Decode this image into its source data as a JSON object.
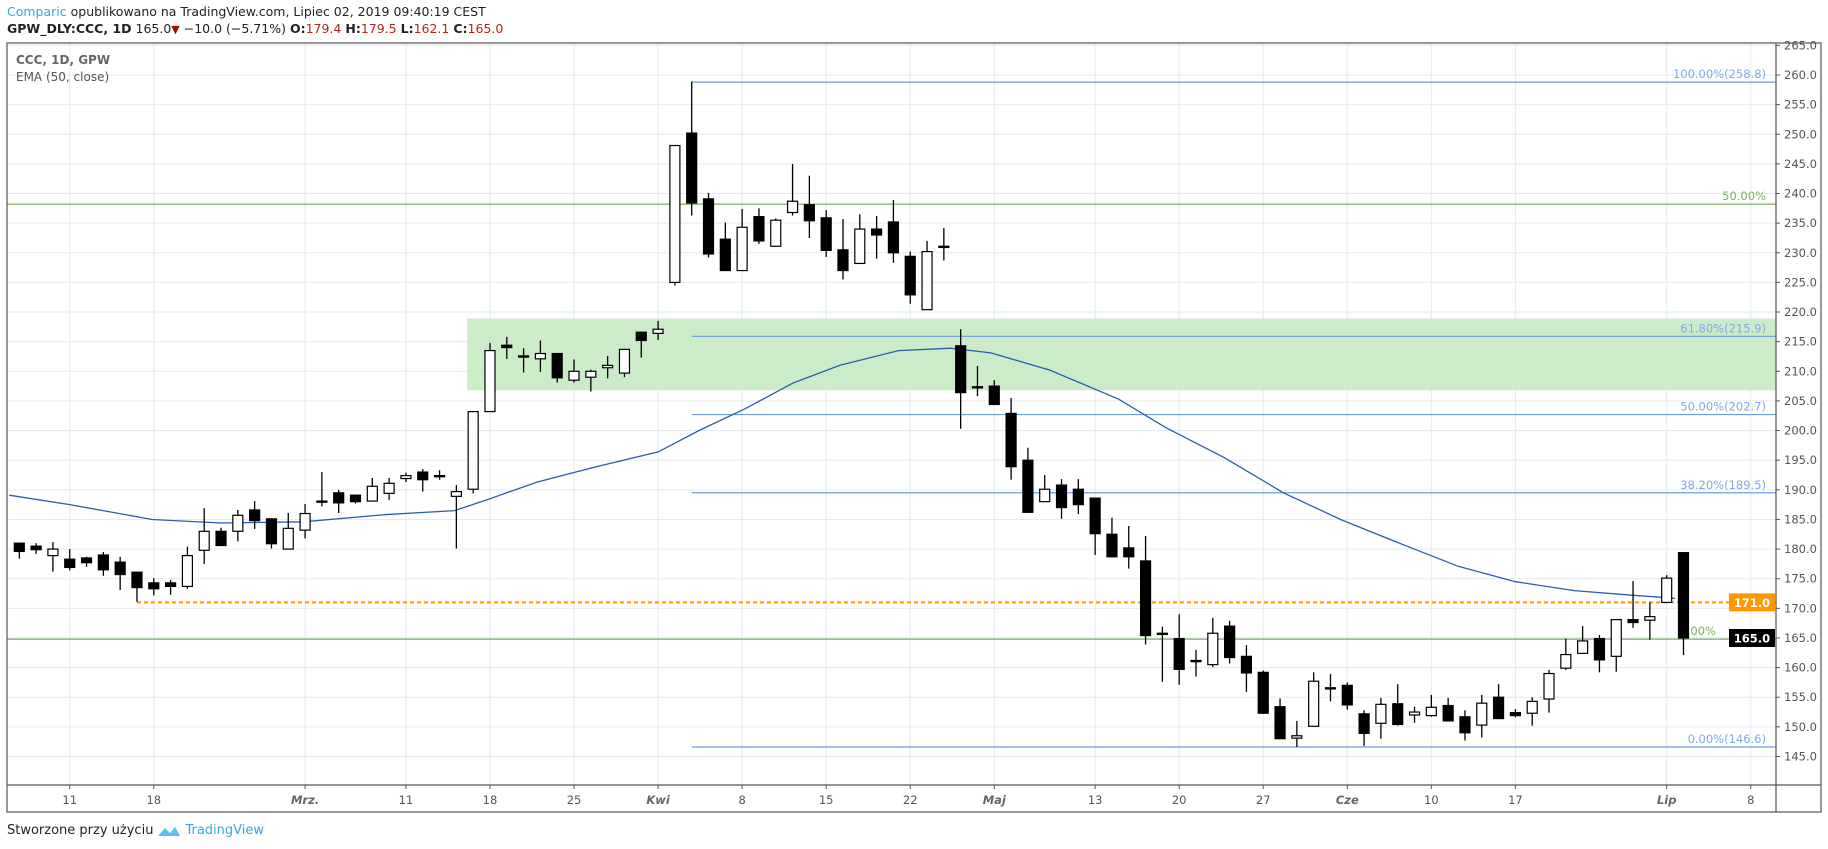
{
  "header": {
    "author": "Comparic",
    "published": "opublikowano na TradingView.com, Lipiec 02, 2019 09:40:19 CEST",
    "symbol": "GPW_DLY:CCC, 1D",
    "last": "165.0",
    "change": "−10.0 (−5.71%)",
    "o_label": "O:",
    "o": "179.4",
    "h_label": "H:",
    "h": "179.5",
    "l_label": "L:",
    "l": "162.1",
    "c_label": "C:",
    "c": "165.0"
  },
  "legend": {
    "title": "CCC, 1D, GPW",
    "indicator": "EMA (50, close)"
  },
  "footer": {
    "text": "Stworzone przy użyciu",
    "brand": "TradingView"
  },
  "colors": {
    "up_body": "#ffffff",
    "down_body": "#000000",
    "ema": "#2a5db0",
    "fib_blue": "#6f9be0",
    "fib_green": "#5e9e3c",
    "zone": "#c9eac5",
    "support": "#ff9800",
    "grid": "#e3ebf2"
  },
  "chart_data": {
    "type": "candlestick",
    "title": "CCC, 1D, GPW",
    "ylim": [
      140.2,
      265.4
    ],
    "y_ticks": [
      "145.0",
      "150.0",
      "155.0",
      "160.0",
      "165.0",
      "170.0",
      "175.0",
      "180.0",
      "185.0",
      "190.0",
      "195.0",
      "200.0",
      "205.0",
      "210.0",
      "215.0",
      "220.0",
      "225.0",
      "230.0",
      "235.0",
      "240.0",
      "245.0",
      "250.0",
      "255.0",
      "260.0",
      "265.0"
    ],
    "x_ticks": [
      {
        "bar": 3,
        "label": "11"
      },
      {
        "bar": 8,
        "label": "18"
      },
      {
        "bar": 17,
        "label": "Mrz.",
        "month": true
      },
      {
        "bar": 23,
        "label": "11"
      },
      {
        "bar": 28,
        "label": "18"
      },
      {
        "bar": 33,
        "label": "25"
      },
      {
        "bar": 38,
        "label": "Kwi",
        "month": true
      },
      {
        "bar": 43,
        "label": "8"
      },
      {
        "bar": 48,
        "label": "15"
      },
      {
        "bar": 53,
        "label": "22"
      },
      {
        "bar": 58,
        "label": "Maj",
        "month": true
      },
      {
        "bar": 64,
        "label": "13"
      },
      {
        "bar": 69,
        "label": "20"
      },
      {
        "bar": 74,
        "label": "27"
      },
      {
        "bar": 79,
        "label": "Cze",
        "month": true
      },
      {
        "bar": 84,
        "label": "10"
      },
      {
        "bar": 89,
        "label": "17"
      },
      {
        "bar": 98,
        "label": "Lip",
        "month": true
      },
      {
        "bar": 103,
        "label": "8"
      }
    ],
    "ohlc": [
      [
        181.0,
        181.1,
        178.4,
        179.6
      ],
      [
        180.5,
        181.0,
        179.2,
        179.9
      ],
      [
        178.9,
        181.2,
        176.2,
        180.0
      ],
      [
        178.3,
        180.0,
        176.4,
        176.9
      ],
      [
        178.5,
        178.7,
        177.0,
        177.7
      ],
      [
        179.0,
        179.5,
        175.5,
        176.5
      ],
      [
        177.8,
        178.7,
        173.1,
        175.7
      ],
      [
        176.1,
        176.1,
        171.1,
        173.5
      ],
      [
        174.3,
        175.1,
        172.2,
        173.3
      ],
      [
        174.3,
        174.8,
        172.3,
        173.7
      ],
      [
        173.7,
        180.4,
        173.3,
        178.9
      ],
      [
        179.8,
        186.9,
        177.5,
        183.0
      ],
      [
        183.0,
        183.6,
        180.6,
        180.6
      ],
      [
        183.0,
        186.6,
        181.3,
        185.7
      ],
      [
        186.6,
        188.1,
        183.4,
        184.8
      ],
      [
        185.1,
        185.1,
        180.1,
        180.9
      ],
      [
        180.0,
        186.1,
        180.0,
        183.5
      ],
      [
        183.2,
        187.6,
        181.8,
        186.0
      ],
      [
        188.1,
        193.0,
        187.2,
        188.1
      ],
      [
        189.5,
        190.0,
        186.1,
        187.8
      ],
      [
        189.1,
        189.1,
        187.7,
        188.0
      ],
      [
        188.1,
        192.0,
        188.1,
        190.6
      ],
      [
        189.4,
        192.0,
        188.3,
        191.1
      ],
      [
        191.9,
        192.9,
        191.3,
        192.4
      ],
      [
        193.0,
        193.5,
        189.7,
        191.7
      ],
      [
        192.4,
        193.3,
        191.7,
        192.4
      ],
      [
        188.9,
        190.8,
        180.1,
        189.7
      ],
      [
        190.1,
        203.2,
        189.4,
        203.2
      ],
      [
        203.2,
        214.8,
        203.2,
        213.5
      ],
      [
        214.4,
        215.8,
        212.1,
        214.0
      ],
      [
        212.6,
        213.9,
        209.8,
        212.6
      ],
      [
        212.1,
        215.2,
        209.9,
        213.0
      ],
      [
        213.0,
        213.0,
        208.1,
        208.9
      ],
      [
        208.5,
        212.0,
        208.1,
        210.0
      ],
      [
        209.0,
        210.3,
        206.6,
        210.0
      ],
      [
        210.6,
        212.6,
        208.8,
        211.0
      ],
      [
        209.7,
        213.7,
        209.0,
        213.7
      ],
      [
        216.6,
        216.6,
        212.3,
        215.2
      ],
      [
        216.4,
        218.5,
        215.3,
        217.1
      ],
      [
        225.0,
        248.1,
        224.5,
        248.1
      ],
      [
        250.2,
        258.9,
        236.3,
        238.4
      ],
      [
        239.1,
        240.1,
        229.2,
        229.8
      ],
      [
        232.3,
        235.1,
        227.0,
        227.0
      ],
      [
        227.0,
        237.4,
        227.0,
        234.3
      ],
      [
        236.1,
        237.5,
        231.5,
        232.0
      ],
      [
        231.1,
        235.8,
        231.1,
        235.5
      ],
      [
        236.8,
        245.0,
        236.3,
        238.7
      ],
      [
        238.1,
        243.0,
        232.5,
        235.4
      ],
      [
        235.9,
        237.2,
        229.3,
        230.4
      ],
      [
        230.5,
        235.7,
        225.5,
        227.0
      ],
      [
        228.2,
        236.5,
        228.2,
        234.0
      ],
      [
        234.0,
        236.2,
        229.0,
        233.0
      ],
      [
        235.2,
        238.9,
        228.3,
        230.0
      ],
      [
        229.4,
        230.2,
        221.4,
        222.9
      ],
      [
        220.4,
        232.0,
        220.4,
        230.2
      ],
      [
        231.1,
        234.2,
        228.7,
        231.1
      ],
      [
        214.3,
        217.1,
        200.3,
        206.4
      ],
      [
        207.4,
        210.9,
        205.8,
        207.4
      ],
      [
        207.5,
        208.5,
        204.4,
        204.4
      ],
      [
        202.9,
        205.5,
        191.7,
        193.9
      ],
      [
        195.0,
        197.1,
        186.2,
        186.2
      ],
      [
        188.0,
        192.5,
        188.0,
        190.1
      ],
      [
        190.8,
        191.8,
        185.1,
        187.0
      ],
      [
        190.1,
        191.8,
        185.9,
        187.5
      ],
      [
        188.6,
        188.6,
        179.0,
        182.6
      ],
      [
        182.5,
        185.3,
        178.7,
        178.7
      ],
      [
        180.2,
        183.9,
        176.7,
        178.7
      ],
      [
        178.0,
        182.2,
        163.9,
        165.4
      ],
      [
        165.8,
        166.9,
        157.6,
        165.8
      ],
      [
        164.9,
        169.0,
        157.1,
        159.7
      ],
      [
        161.2,
        163.0,
        158.5,
        161.2
      ],
      [
        160.5,
        168.4,
        160.1,
        165.8
      ],
      [
        167.0,
        167.9,
        160.7,
        161.7
      ],
      [
        161.9,
        163.8,
        155.9,
        159.1
      ],
      [
        159.2,
        159.5,
        152.2,
        152.3
      ],
      [
        153.4,
        154.8,
        148.0,
        148.0
      ],
      [
        148.1,
        151.0,
        146.6,
        148.5
      ],
      [
        150.1,
        159.2,
        150.1,
        157.7
      ],
      [
        156.6,
        158.9,
        154.3,
        156.6
      ],
      [
        157.0,
        157.5,
        152.9,
        153.7
      ],
      [
        152.2,
        152.8,
        146.8,
        148.9
      ],
      [
        150.6,
        154.9,
        148.0,
        153.8
      ],
      [
        153.9,
        157.2,
        150.2,
        150.4
      ],
      [
        152.0,
        153.4,
        150.7,
        152.5
      ],
      [
        151.9,
        155.4,
        151.7,
        153.3
      ],
      [
        153.6,
        154.9,
        151.0,
        151.0
      ],
      [
        151.7,
        152.8,
        147.7,
        149.0
      ],
      [
        150.3,
        155.4,
        148.2,
        154.0
      ],
      [
        155.0,
        157.2,
        151.3,
        151.4
      ],
      [
        152.4,
        153.0,
        151.6,
        151.9
      ],
      [
        152.3,
        155.0,
        150.2,
        154.3
      ],
      [
        154.7,
        159.6,
        152.4,
        159.0
      ],
      [
        159.9,
        164.9,
        159.6,
        162.2
      ],
      [
        162.4,
        167.0,
        162.4,
        164.5
      ],
      [
        164.9,
        165.5,
        159.2,
        161.3
      ],
      [
        161.9,
        168.1,
        159.3,
        168.1
      ],
      [
        168.1,
        174.6,
        166.7,
        167.6
      ],
      [
        168.0,
        171.0,
        164.7,
        168.6
      ],
      [
        171.0,
        175.6,
        171.0,
        175.1
      ],
      [
        179.4,
        179.5,
        162.1,
        165.0
      ]
    ],
    "ema": {
      "name": "EMA (50, close)",
      "points": [
        [
          -0.6,
          189.1
        ],
        [
          3,
          187.5
        ],
        [
          7.9,
          185.0
        ],
        [
          12,
          184.4
        ],
        [
          16.9,
          184.6
        ],
        [
          21.7,
          185.8
        ],
        [
          25.9,
          186.5
        ],
        [
          28,
          188.5
        ],
        [
          30.8,
          191.3
        ],
        [
          34.2,
          193.8
        ],
        [
          38,
          196.4
        ],
        [
          40.5,
          200.1
        ],
        [
          43.2,
          203.7
        ],
        [
          46,
          208.0
        ],
        [
          48.8,
          211.0
        ],
        [
          52.3,
          213.5
        ],
        [
          55.4,
          213.9
        ],
        [
          57.8,
          213.1
        ],
        [
          61.3,
          210.2
        ],
        [
          65.4,
          205.3
        ],
        [
          68.2,
          200.5
        ],
        [
          71.7,
          195.4
        ],
        [
          75.2,
          189.5
        ],
        [
          78.6,
          185.0
        ],
        [
          82.1,
          181.0
        ],
        [
          85.6,
          177.1
        ],
        [
          89,
          174.5
        ],
        [
          92.5,
          173.0
        ],
        [
          96,
          172.2
        ],
        [
          98.5,
          171.7
        ]
      ]
    },
    "fib_retracement": {
      "start_bar": 40,
      "levels": [
        {
          "label": "100.00%(258.8)",
          "value": 258.8
        },
        {
          "label": "61.80%(215.9)",
          "value": 215.9
        },
        {
          "label": "50.00%(202.7)",
          "value": 202.7
        },
        {
          "label": "38.20%(189.5)",
          "value": 189.5
        },
        {
          "label": "0.00%(146.6)",
          "value": 146.6
        }
      ]
    },
    "green_levels": [
      {
        "label": "50.00%",
        "value": 238.2
      },
      {
        "label": "0.00%",
        "value": 164.8
      }
    ],
    "zone": {
      "start_bar": 27,
      "low": 206.8,
      "high": 218.9
    },
    "support": {
      "start_bar": 7,
      "value": 171.0,
      "label": "171.0"
    },
    "last_price_label": "165.0"
  }
}
